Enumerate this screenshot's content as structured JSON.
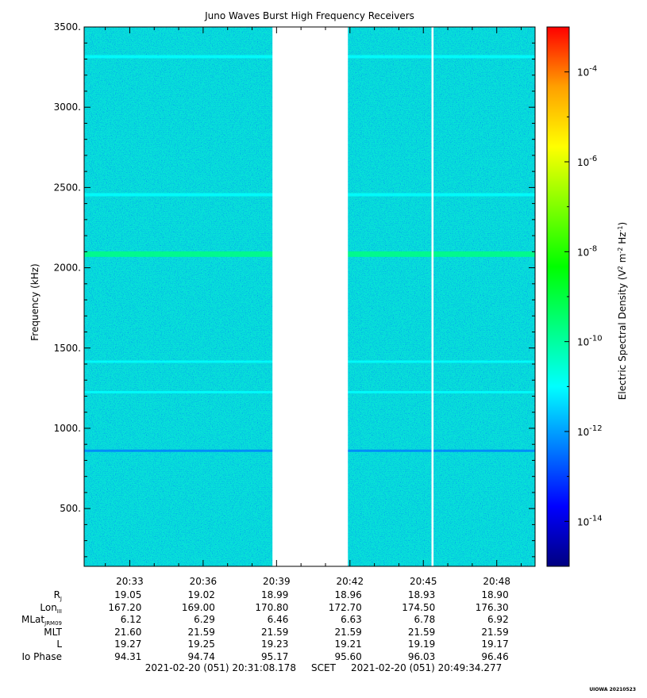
{
  "chart_data": {
    "type": "heatmap",
    "title": "Juno Waves Burst High Frequency Receivers",
    "ylabel": "Frequency (kHz)",
    "colorbar_label": "Electric Spectral Density (V2 m-2 Hz-1)",
    "ylim": [
      140,
      3500
    ],
    "y_ticks": [
      500,
      1000,
      1500,
      2000,
      2500,
      3000,
      3500
    ],
    "y_tick_labels": [
      "500.",
      "1000.",
      "1500.",
      "2000.",
      "2500.",
      "3000.",
      "3500."
    ],
    "x_tick_labels": [
      "20:33",
      "20:36",
      "20:39",
      "20:42",
      "20:45",
      "20:48"
    ],
    "colorbar": {
      "scale": "log",
      "range_exp": [
        -15,
        -3
      ],
      "tick_exponents": [
        -4,
        -6,
        -8,
        -10,
        -12,
        -14
      ],
      "base": "10",
      "colors": [
        "#000080",
        "#0000ff",
        "#0080ff",
        "#00ffff",
        "#00ff80",
        "#00ff00",
        "#80ff00",
        "#ffff00",
        "#ffa000",
        "#ff0000"
      ]
    },
    "background_level_exp": -12,
    "data_gaps": [
      {
        "from": "20:38:50",
        "to": "20:41:55"
      },
      {
        "from": "20:45:20",
        "to": "20:45:25"
      }
    ],
    "emission_lines_khz": [
      {
        "freq": 3315,
        "exp": -10.6
      },
      {
        "freq": 2455,
        "exp": -10.9
      },
      {
        "freq": 2085,
        "exp": -9.9
      },
      {
        "freq": 1415,
        "exp": -11.3
      },
      {
        "freq": 1225,
        "exp": -11.5
      },
      {
        "freq": 860,
        "exp": -11.7
      }
    ],
    "ephemeris": {
      "rows": [
        {
          "label_main": "R",
          "label_sub": "J",
          "values": [
            "19.05",
            "19.02",
            "18.99",
            "18.96",
            "18.93",
            "18.90"
          ]
        },
        {
          "label_main": "Lon",
          "label_sub": "III",
          "values": [
            "167.20",
            "169.00",
            "170.80",
            "172.70",
            "174.50",
            "176.30"
          ]
        },
        {
          "label_main": "MLat",
          "label_sub": "JRM09",
          "values": [
            "6.12",
            "6.29",
            "6.46",
            "6.63",
            "6.78",
            "6.92"
          ]
        },
        {
          "label_main": "MLT",
          "label_sub": "",
          "values": [
            "21.60",
            "21.59",
            "21.59",
            "21.59",
            "21.59",
            "21.59"
          ]
        },
        {
          "label_main": "L",
          "label_sub": "",
          "values": [
            "19.27",
            "19.25",
            "19.23",
            "19.21",
            "19.19",
            "19.17"
          ]
        },
        {
          "label_main": "Io Phase",
          "label_sub": "",
          "values": [
            "94.31",
            "94.74",
            "95.17",
            "95.60",
            "96.03",
            "96.46"
          ]
        }
      ]
    },
    "time_range": {
      "start": "2021-02-20 (051) 20:31:08.178",
      "mid_label": "SCET",
      "end": "2021-02-20 (051) 20:49:34.277"
    }
  },
  "credit": "UIOWA 20210523"
}
